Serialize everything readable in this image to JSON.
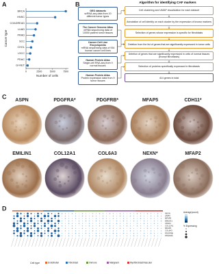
{
  "panel_labels": [
    "A",
    "B",
    "C",
    "D"
  ],
  "chart_data": {
    "type": "lollipop",
    "x_label": "Number of cells",
    "y_label": "Cancer type",
    "categories": [
      "BRCA",
      "HNSC",
      "COADREAD",
      "LUAD",
      "PRAD",
      "SCC",
      "CHOL",
      "LSCC",
      "PDAC",
      "GI-NET"
    ],
    "values": [
      7500,
      5500,
      2100,
      1800,
      1500,
      1200,
      950,
      800,
      600,
      300
    ],
    "color": "#2a6fb0",
    "xlim": [
      0,
      8000
    ],
    "xticks": [
      0,
      2500,
      5000,
      7500
    ]
  },
  "flow": {
    "title": "Algorithm for identifying CAF markers",
    "sources": [
      {
        "title": "GEO datasets",
        "text": "scRNA-seq data from 10 different tumor types"
      },
      {
        "title": "The Cancer Genome Atlas",
        "text": "mRNA sequencing data of 10000 patient tumor tissues"
      },
      {
        "title": "Cancer Cell Line Encyclopedia",
        "text": "mRNA sequencing data of 934 human cancer cell lines"
      },
      {
        "title": "Human Protein Atlas",
        "text": "Single-cell RNA-seq from 9 normal tissues"
      },
      {
        "title": "Human Protein Atlas",
        "text": "Protein expression data from 9 tumor tissues"
      }
    ],
    "steps": [
      "Cell clustering and UMAP visualization for each dataset",
      "Annotation of cell identity on each cluster by the expression of known markers",
      "Selection of genes whose expression is specific for fibroblasts",
      "Deletion from the list of genes that are significantly expressed in tumor cells",
      "Deletion of genes that are significantly expressed in cells of normal tissues (except fibroblasts)",
      "Selection of proteins specifically expressed in fibroblasts",
      "414 genes in total"
    ]
  },
  "ihc": {
    "markers": [
      "ASPN",
      "PDGFRA*",
      "PDGFRB*",
      "MFAP5",
      "CDH11*",
      "EMILIN1",
      "COL12A1",
      "COL6A3",
      "NEXN*",
      "MFAP2"
    ]
  },
  "dotplot": {
    "genes": [
      "NEXN",
      "ASPN",
      "MFAP5",
      "EMILIN1",
      "CDH11",
      "COL12A1",
      "MFAP2",
      "COL6A3",
      "PDGFRB",
      "PDGFRA"
    ],
    "size_legend_title": "Average(count)",
    "pct_legend_title": "% Expressing",
    "cell_type_title": "Cell type",
    "cell_types": [
      "Endothelial",
      "Fibroblast",
      "Immune",
      "Malignant",
      "Myofibroblast/Vascular"
    ]
  }
}
